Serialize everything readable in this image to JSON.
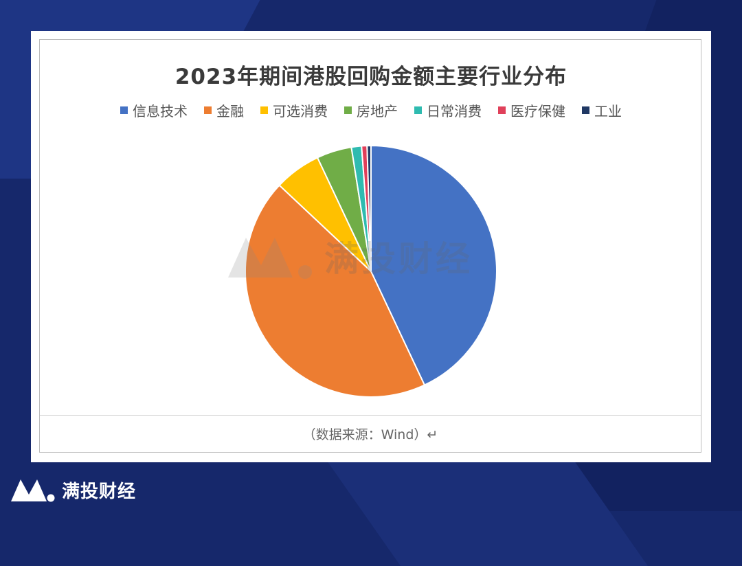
{
  "chart_data": {
    "type": "pie",
    "title": "2023年期间港股回购金额主要行业分布",
    "legend_position": "top",
    "slices": [
      {
        "label": "信息技术",
        "value": 43.0,
        "color": "#4472c4"
      },
      {
        "label": "金融",
        "value": 44.0,
        "color": "#ed7d31"
      },
      {
        "label": "可选消费",
        "value": 6.0,
        "color": "#ffc000"
      },
      {
        "label": "房地产",
        "value": 4.5,
        "color": "#70ad47"
      },
      {
        "label": "日常消费",
        "value": 1.3,
        "color": "#2fbbb0"
      },
      {
        "label": "医疗保健",
        "value": 0.7,
        "color": "#e0405a"
      },
      {
        "label": "工业",
        "value": 0.5,
        "color": "#203864"
      }
    ]
  },
  "source": "（数据来源：Wind）↵",
  "watermark": "满投财经",
  "brand": {
    "name": "满投财经"
  }
}
